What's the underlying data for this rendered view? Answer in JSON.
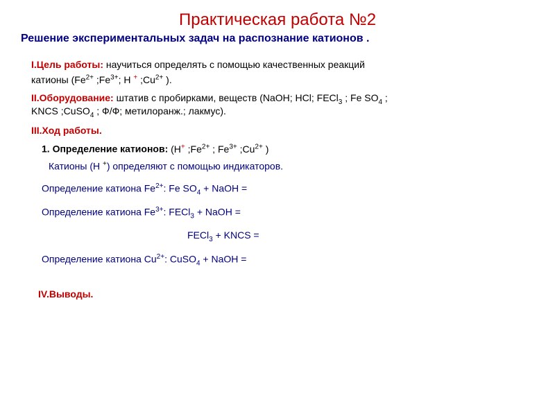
{
  "title": "Практическая работа №2",
  "subtitle": "Решение экспериментальных задач на распознание катионов .",
  "goal": {
    "label": "I.Цель работы:",
    "text": " научиться определять с помощью качественных реакций",
    "line2_prefix": "катионы (Fe",
    "line2_suffix": " )."
  },
  "equipment": {
    "label": "II.Оборудование:",
    "text": " штатив с пробирками, веществ (NaOH;  HCl;  FECl",
    "text_suffix": " ; ",
    "text_end": " ;",
    "line2": "KNCS ;CuSO",
    "line2_suffix": " ;  Ф/Ф; метилоранж.; лакмус)."
  },
  "procedure": {
    "label": "III.Ход работы."
  },
  "item1": {
    "label": "1. Определение катионов:",
    "suffix": " )"
  },
  "indicator_text_prefix": "Катионы  (",
  "indicator_text_suffix": ") определяют с помощью индикаторов.",
  "reaction1": {
    "prefix": "Определение катиона Fe",
    "formula": ": Fe SO",
    "suffix": "  +  NaOH   ="
  },
  "reaction2": {
    "prefix": "Определение катиона Fe",
    "formula": ": FECl",
    "suffix": "  +  NaOH   ="
  },
  "reaction2b": {
    "formula": "FECl",
    "suffix": "  +  KNCS   ="
  },
  "reaction3": {
    "prefix": "Определение катиона Cu",
    "formula": ": CuSO",
    "suffix": " +  NaOH   ="
  },
  "conclusions": "IV.Выводы.",
  "colors": {
    "red": "#c00000",
    "blue": "#000080",
    "black": "#000000"
  },
  "ions": {
    "fe2": "2+",
    "fe3": "3+",
    "h_plus": "+",
    "cu2": "2+",
    "sub3": "3",
    "sub4": "4"
  }
}
